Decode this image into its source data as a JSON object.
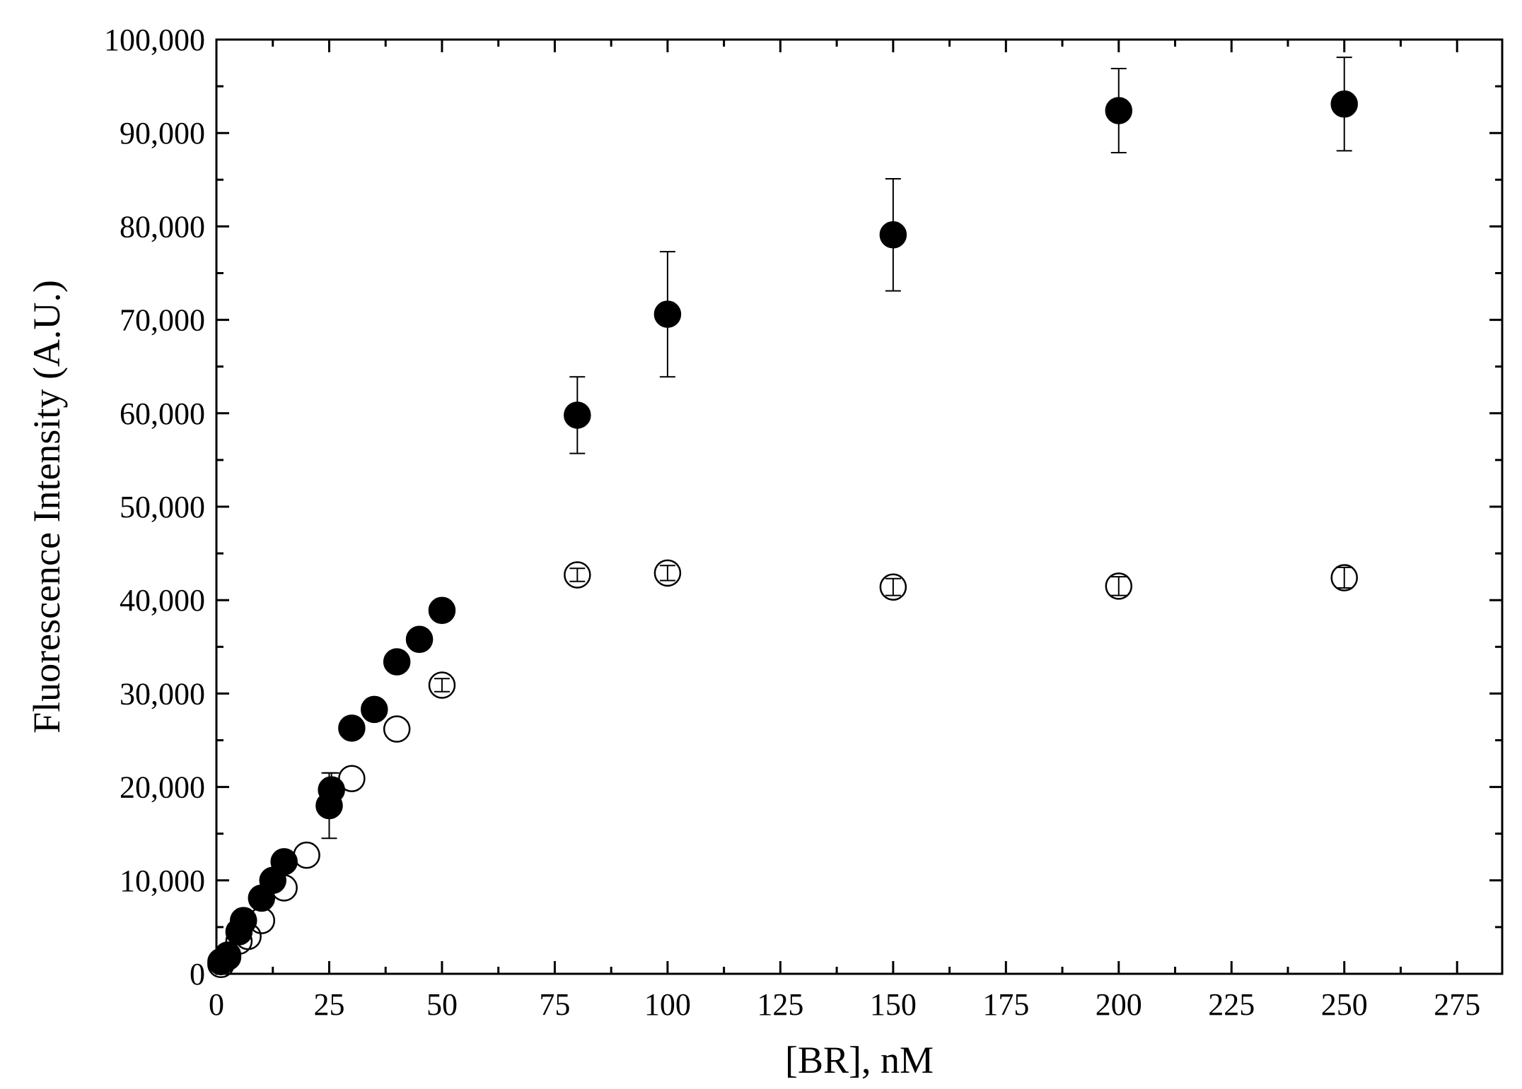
{
  "chart_data": {
    "type": "scatter",
    "title": "",
    "xlabel": "[BR], nM",
    "ylabel": "Fluorescence Intensity (A.U.)",
    "xlim": [
      0,
      285
    ],
    "ylim": [
      0,
      100000
    ],
    "x_ticks": [
      0,
      25,
      50,
      75,
      100,
      125,
      150,
      175,
      200,
      225,
      250,
      275
    ],
    "x_tick_labels": [
      "0",
      "25",
      "50",
      "75",
      "100",
      "125",
      "150",
      "175",
      "200",
      "225",
      "250",
      "275"
    ],
    "y_ticks": [
      0,
      10000,
      20000,
      30000,
      40000,
      50000,
      60000,
      70000,
      80000,
      90000,
      100000
    ],
    "y_tick_labels": [
      "0",
      "10,000",
      "20,000",
      "30,000",
      "40,000",
      "50,000",
      "60,000",
      "70,000",
      "80,000",
      "90,000",
      "100,000"
    ],
    "grid": false,
    "legend": "none",
    "series": [
      {
        "marker": "filled-circle",
        "color": "#000000",
        "points": [
          {
            "x": 1,
            "y": 1300,
            "err": 0
          },
          {
            "x": 2.5,
            "y": 2000,
            "err": 0
          },
          {
            "x": 5,
            "y": 4500,
            "err": 0
          },
          {
            "x": 6,
            "y": 5700,
            "err": 0
          },
          {
            "x": 10,
            "y": 8100,
            "err": 0
          },
          {
            "x": 12.5,
            "y": 10000,
            "err": 0
          },
          {
            "x": 15,
            "y": 12000,
            "err": 0
          },
          {
            "x": 25,
            "y": 18000,
            "err": 3500
          },
          {
            "x": 25.5,
            "y": 19700,
            "err": 1800
          },
          {
            "x": 30,
            "y": 26300,
            "err": 0
          },
          {
            "x": 35,
            "y": 28300,
            "err": 0
          },
          {
            "x": 40,
            "y": 33400,
            "err": 0
          },
          {
            "x": 45,
            "y": 35800,
            "err": 0
          },
          {
            "x": 50,
            "y": 38900,
            "err": 0
          },
          {
            "x": 80,
            "y": 59800,
            "err": 4100
          },
          {
            "x": 100,
            "y": 70600,
            "err": 6700
          },
          {
            "x": 150,
            "y": 79100,
            "err": 6000
          },
          {
            "x": 200,
            "y": 92400,
            "err": 4500
          },
          {
            "x": 250,
            "y": 93100,
            "err": 5000
          }
        ]
      },
      {
        "marker": "open-circle",
        "color": "#000000",
        "points": [
          {
            "x": 1,
            "y": 1000,
            "err": 0
          },
          {
            "x": 2.5,
            "y": 1800,
            "err": 0
          },
          {
            "x": 5,
            "y": 3500,
            "err": 0
          },
          {
            "x": 7,
            "y": 4000,
            "err": 0
          },
          {
            "x": 10,
            "y": 5700,
            "err": 0
          },
          {
            "x": 15,
            "y": 9200,
            "err": 0
          },
          {
            "x": 20,
            "y": 12700,
            "err": 0
          },
          {
            "x": 30,
            "y": 20900,
            "err": 0
          },
          {
            "x": 40,
            "y": 26200,
            "err": 0
          },
          {
            "x": 50,
            "y": 30900,
            "err": 700
          },
          {
            "x": 80,
            "y": 42700,
            "err": 700
          },
          {
            "x": 100,
            "y": 42900,
            "err": 800
          },
          {
            "x": 150,
            "y": 41400,
            "err": 900
          },
          {
            "x": 200,
            "y": 41500,
            "err": 1000
          },
          {
            "x": 250,
            "y": 42400,
            "err": 1100
          }
        ]
      }
    ]
  }
}
